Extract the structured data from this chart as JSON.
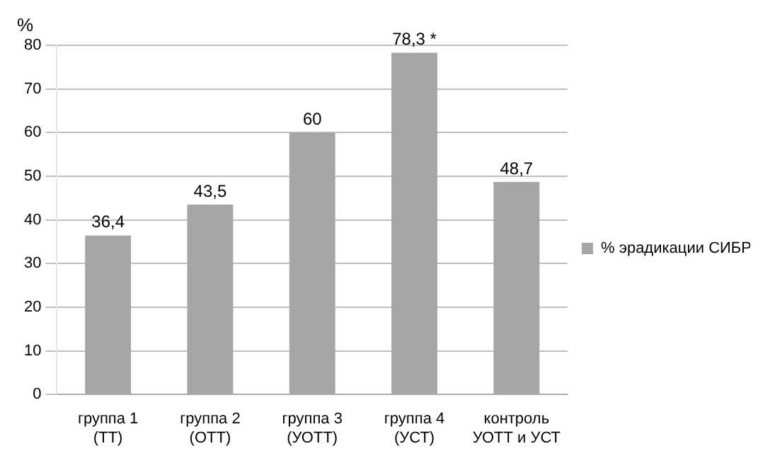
{
  "chart_data": {
    "type": "bar",
    "ylabel": "%",
    "categories": [
      "группа 1\n(ТТ)",
      "группа 2\n(ОТТ)",
      "группа 3\n(УОТТ)",
      "группа 4\n(УСТ)",
      "контроль\nУОТТ и УСТ"
    ],
    "series": [
      {
        "name": "% эрадикации СИБР",
        "color": "#a6a6a6",
        "values": [
          36.4,
          43.5,
          60,
          78.3,
          48.7
        ],
        "value_labels": [
          "36,4",
          "43,5",
          "60",
          "78,3 *",
          "48,7"
        ]
      }
    ],
    "ylim": [
      0,
      80
    ],
    "yticks": [
      0,
      10,
      20,
      30,
      40,
      50,
      60,
      70,
      80
    ],
    "grid": "y",
    "legend": "right"
  }
}
